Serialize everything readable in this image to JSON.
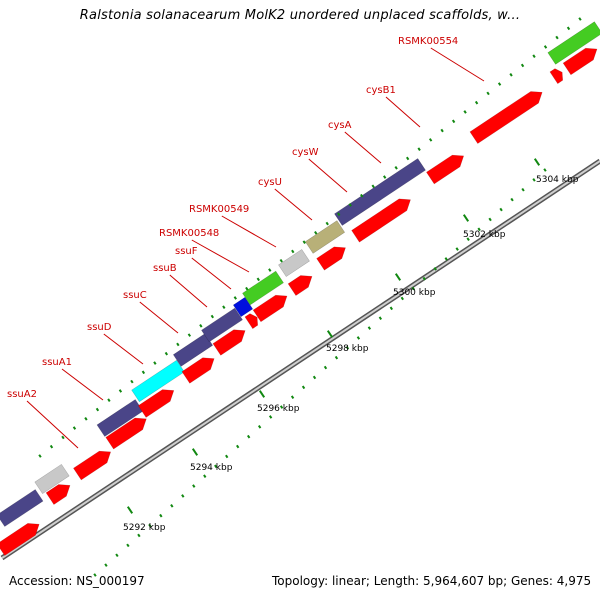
{
  "title": "Ralstonia solanacearum MolK2 unordered unplaced scaffolds, w...",
  "footer": {
    "accession_prefix": "Accession:",
    "accession": "NS_000197",
    "topology": "Topology: linear; Length: 5,964,607 bp; Genes: 4,975"
  },
  "colors": {
    "cds": "#ff0000",
    "gene_navy": "#4a4588",
    "gene_cyan": "#00ffff",
    "gene_green": "#44cc22",
    "gene_gray": "#c8c8c8",
    "gene_khaki": "#b8b078",
    "gene_blue": "#0010dd",
    "label_red": "#cc0000",
    "dots": "#118811",
    "backbone": "#999999"
  },
  "gene_labels": [
    "ssuA2",
    "ssuA1",
    "ssuD",
    "ssuC",
    "ssuB",
    "ssuF",
    "RSMK00548",
    "RSMK00549",
    "cysU",
    "cysW",
    "cysA",
    "cysB1",
    "RSMK00554"
  ],
  "kbp_labels": [
    "5292 kbp",
    "5294 kbp",
    "5296 kbp",
    "5298 kbp",
    "5300 kbp",
    "5302 kbp",
    "5304 kbp"
  ]
}
